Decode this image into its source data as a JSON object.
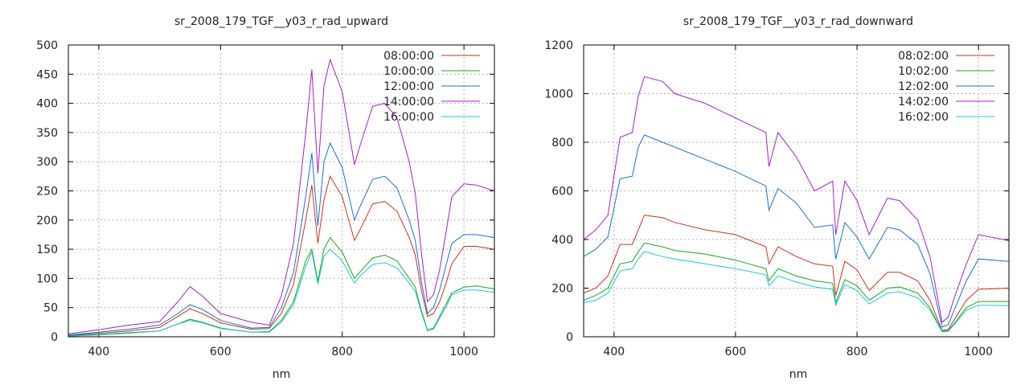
{
  "chart_data": [
    {
      "type": "line",
      "title": "sr_2008_179_TGF__y03_r_rad_upward",
      "xlabel": "nm",
      "ylabel": "",
      "xlim": [
        350,
        1050
      ],
      "ylim": [
        0,
        500
      ],
      "xticks": [
        400,
        600,
        800,
        1000
      ],
      "yticks": [
        0,
        50,
        100,
        150,
        200,
        250,
        300,
        350,
        400,
        450,
        500
      ],
      "grid": true,
      "legend_position": "top-right",
      "x": [
        350,
        400,
        450,
        500,
        530,
        550,
        570,
        600,
        650,
        680,
        700,
        720,
        740,
        750,
        760,
        770,
        780,
        800,
        820,
        830,
        850,
        870,
        890,
        910,
        920,
        930,
        940,
        950,
        960,
        970,
        980,
        1000,
        1020,
        1050
      ],
      "series": [
        {
          "name": "08:00:00",
          "color": "#c8321e",
          "values": [
            2,
            6,
            10,
            16,
            35,
            48,
            40,
            24,
            13,
            14,
            40,
            90,
            200,
            260,
            160,
            235,
            275,
            240,
            165,
            185,
            228,
            232,
            215,
            170,
            140,
            80,
            35,
            40,
            60,
            90,
            125,
            155,
            155,
            150
          ]
        },
        {
          "name": "10:00:00",
          "color": "#22a022",
          "values": [
            2,
            4,
            7,
            10,
            22,
            30,
            25,
            15,
            8,
            9,
            28,
            60,
            130,
            150,
            95,
            150,
            170,
            145,
            100,
            112,
            135,
            140,
            130,
            100,
            85,
            45,
            12,
            15,
            35,
            55,
            75,
            85,
            87,
            82
          ]
        },
        {
          "name": "12:00:00",
          "color": "#1e6fc8",
          "values": [
            3,
            8,
            13,
            20,
            40,
            55,
            47,
            28,
            15,
            16,
            50,
            110,
            240,
            315,
            190,
            300,
            332,
            290,
            200,
            225,
            270,
            275,
            255,
            200,
            165,
            95,
            40,
            50,
            80,
            120,
            160,
            175,
            175,
            170
          ]
        },
        {
          "name": "14:00:00",
          "color": "#a020c8",
          "values": [
            5,
            12,
            20,
            26,
            60,
            86,
            70,
            40,
            25,
            20,
            70,
            160,
            350,
            458,
            280,
            430,
            475,
            420,
            295,
            330,
            395,
            400,
            375,
            300,
            245,
            145,
            60,
            72,
            115,
            175,
            240,
            262,
            260,
            250
          ]
        },
        {
          "name": "16:00:00",
          "color": "#1ec8d8",
          "values": [
            1,
            3,
            6,
            10,
            22,
            28,
            24,
            14,
            8,
            8,
            25,
            55,
            120,
            145,
            90,
            138,
            150,
            130,
            92,
            105,
            124,
            127,
            118,
            92,
            78,
            42,
            10,
            13,
            32,
            50,
            72,
            80,
            80,
            76
          ]
        }
      ]
    },
    {
      "type": "line",
      "title": "sr_2008_179_TGF__y03_r_rad_downward",
      "xlabel": "nm",
      "ylabel": "",
      "xlim": [
        350,
        1050
      ],
      "ylim": [
        0,
        1200
      ],
      "xticks": [
        400,
        600,
        800,
        1000
      ],
      "yticks": [
        0,
        200,
        400,
        600,
        800,
        1000,
        1200
      ],
      "grid": true,
      "legend_position": "top-right",
      "x": [
        350,
        370,
        390,
        410,
        430,
        440,
        450,
        480,
        500,
        550,
        600,
        650,
        655,
        670,
        700,
        730,
        760,
        765,
        780,
        800,
        820,
        850,
        870,
        900,
        920,
        940,
        950,
        960,
        980,
        1000,
        1050
      ],
      "series": [
        {
          "name": "08:02:00",
          "color": "#c8321e",
          "values": [
            180,
            200,
            250,
            380,
            380,
            440,
            500,
            490,
            470,
            440,
            420,
            370,
            300,
            370,
            330,
            300,
            290,
            170,
            310,
            275,
            190,
            265,
            265,
            230,
            150,
            25,
            30,
            70,
            150,
            195,
            200
          ]
        },
        {
          "name": "10:02:00",
          "color": "#22a022",
          "values": [
            150,
            170,
            200,
            300,
            310,
            350,
            385,
            370,
            355,
            340,
            315,
            280,
            230,
            280,
            250,
            230,
            220,
            140,
            235,
            210,
            150,
            200,
            205,
            180,
            120,
            22,
            25,
            55,
            120,
            145,
            145
          ]
        },
        {
          "name": "12:02:00",
          "color": "#1e6fc8",
          "values": [
            330,
            360,
            410,
            650,
            660,
            780,
            830,
            800,
            780,
            730,
            680,
            620,
            520,
            610,
            550,
            450,
            460,
            320,
            470,
            410,
            320,
            450,
            440,
            380,
            260,
            40,
            50,
            110,
            230,
            320,
            310
          ]
        },
        {
          "name": "14:02:00",
          "color": "#a020c8",
          "values": [
            400,
            440,
            500,
            820,
            840,
            990,
            1070,
            1050,
            1000,
            960,
            900,
            840,
            700,
            840,
            740,
            600,
            640,
            420,
            640,
            560,
            420,
            570,
            560,
            480,
            330,
            60,
            80,
            160,
            300,
            420,
            395
          ]
        },
        {
          "name": "16:02:00",
          "color": "#1ec8d8",
          "values": [
            140,
            150,
            180,
            270,
            280,
            320,
            350,
            330,
            320,
            300,
            280,
            255,
            210,
            250,
            225,
            205,
            195,
            130,
            215,
            190,
            135,
            180,
            185,
            160,
            110,
            20,
            22,
            50,
            110,
            130,
            128
          ]
        }
      ]
    }
  ]
}
